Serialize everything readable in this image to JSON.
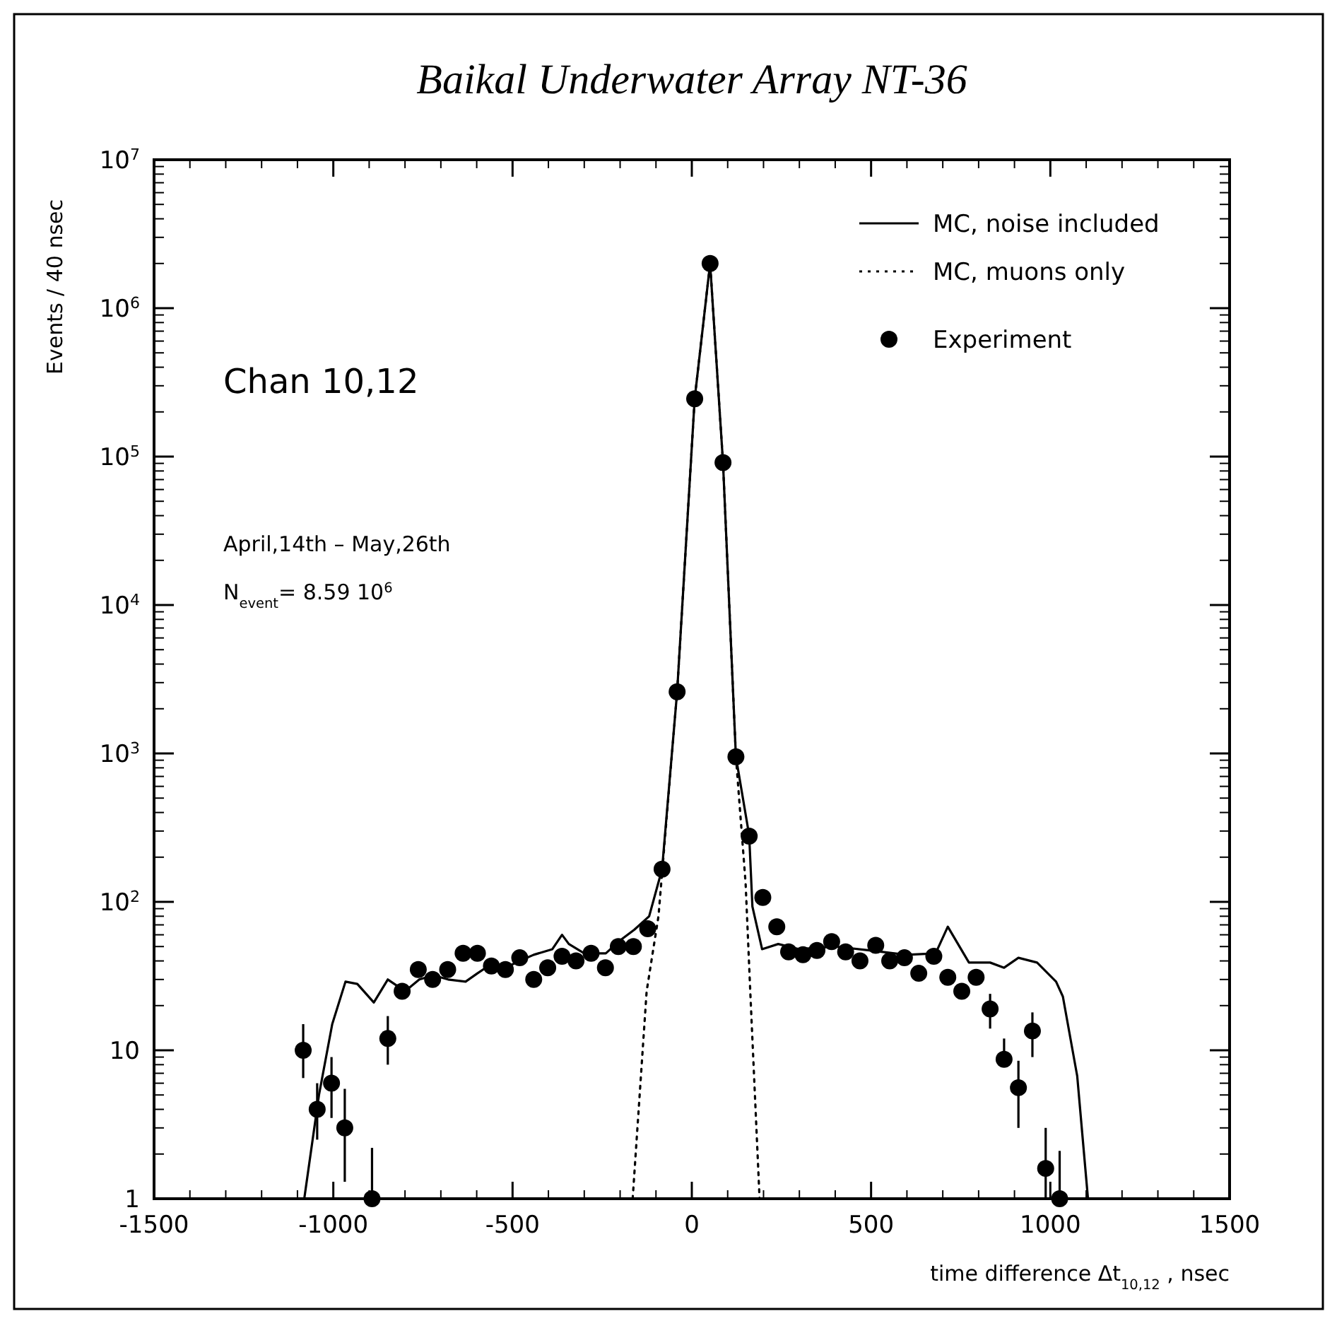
{
  "chart_data": {
    "type": "scatter",
    "title": "Baikal Underwater Array NT-36",
    "xlabel": "time difference  Δt$_{10,12}$ , nsec",
    "ylabel": "Events / 40 nsec",
    "annotations": [
      "Chan 10,12",
      "April,14th – May,26th",
      "N$_{event}$= 8.59 10$^{6}$"
    ],
    "xlim": [
      -1500,
      1500
    ],
    "xticks": [
      -1500,
      -1000,
      -500,
      0,
      500,
      1000,
      1500
    ],
    "ylim": [
      1,
      10000000
    ],
    "yticks": [
      1,
      10,
      {
        "value": 100,
        "label": "10$^{2}$"
      },
      {
        "value": 1000,
        "label": "10$^{3}$"
      },
      {
        "value": 10000,
        "label": "10$^{4}$"
      },
      {
        "value": 100000,
        "label": "10$^{5}$"
      },
      {
        "value": 1000000,
        "label": "10$^{6}$"
      },
      {
        "value": 10000000,
        "label": "10$^{7}$"
      }
    ],
    "log": "y",
    "grid": false,
    "legend": "top right",
    "series": [
      {
        "name": "MC, noise included",
        "type": "line",
        "line_style": "solid",
        "marker": "none",
        "color": "#000000",
        "x": [
          -1081,
          -1040,
          -1003,
          -966,
          -933,
          -887,
          -848,
          -800,
          -760,
          -720,
          -680,
          -631,
          -598,
          -560,
          -520,
          -480,
          -441,
          -389,
          -362,
          -343,
          -300,
          -240,
          -200,
          -160,
          -119,
          -83,
          -41,
          8,
          51,
          87,
          123,
          160,
          169,
          196,
          241,
          300,
          400,
          500,
          600,
          680,
          714,
          773,
          832,
          871,
          911,
          963,
          1016,
          1035,
          1075,
          1105
        ],
        "values": [
          1,
          5,
          15,
          29,
          28,
          21,
          30,
          25,
          30,
          32,
          30,
          29,
          33,
          38,
          36,
          40,
          44,
          48,
          60,
          52,
          45,
          45,
          55,
          65,
          80,
          166,
          2600,
          245000,
          2000000,
          91000,
          950,
          280,
          93,
          48,
          52,
          48,
          50,
          47,
          44,
          45,
          68,
          39,
          39,
          36,
          42,
          39,
          29,
          23,
          6.7,
          1
        ]
      },
      {
        "name": "MC, muons only",
        "type": "line",
        "line_style": "dotted",
        "marker": "none",
        "color": "#000000",
        "x": [
          -165,
          -126,
          -93,
          -41,
          8,
          51,
          87,
          123,
          150,
          163,
          189
        ],
        "values": [
          1,
          25,
          80,
          2600,
          245000,
          2000000,
          91000,
          950,
          134,
          25,
          1
        ]
      },
      {
        "name": "Experiment",
        "marker": "circle",
        "color": "#000000",
        "x": [
          -1084,
          -1045,
          -1005,
          -968,
          -892,
          -848,
          -808,
          -763,
          -723,
          -681,
          -638,
          -598,
          -559,
          -520,
          -480,
          -441,
          -402,
          -362,
          -323,
          -281,
          -241,
          -205,
          -163,
          -123,
          -83,
          -41,
          8,
          51,
          87,
          123,
          160,
          198,
          237,
          270,
          310,
          349,
          390,
          429,
          469,
          513,
          552,
          593,
          633,
          675,
          714,
          753,
          793,
          832,
          871,
          911,
          950,
          987,
          1026
        ],
        "values": [
          10,
          4,
          6,
          3,
          1,
          12,
          25,
          35,
          30,
          35,
          45,
          45,
          37,
          35,
          42,
          30,
          36,
          43,
          40,
          45,
          36,
          50,
          50,
          66,
          166,
          2600,
          245000,
          2000000,
          91000,
          950,
          277,
          107,
          68,
          46,
          44,
          47,
          54,
          46,
          40,
          51,
          40,
          42,
          33,
          43,
          31,
          25,
          31,
          19,
          8.7,
          5.6,
          13.5,
          1.6,
          1
        ],
        "errors": [
          [
            6.5,
            15
          ],
          [
            2.5,
            6
          ],
          [
            3.5,
            9
          ],
          [
            1.3,
            5.5
          ],
          [
            1,
            2.2
          ],
          [
            8,
            17
          ],
          null,
          null,
          null,
          null,
          null,
          null,
          null,
          null,
          null,
          null,
          null,
          null,
          null,
          null,
          null,
          null,
          null,
          null,
          null,
          null,
          null,
          null,
          null,
          null,
          null,
          null,
          null,
          null,
          null,
          null,
          null,
          null,
          null,
          null,
          null,
          null,
          null,
          null,
          null,
          null,
          null,
          [
            14,
            24
          ],
          [
            8.7,
            12
          ],
          [
            3,
            8.5
          ],
          [
            9,
            18
          ],
          [
            1,
            3
          ],
          [
            1,
            2.1
          ]
        ]
      }
    ]
  }
}
